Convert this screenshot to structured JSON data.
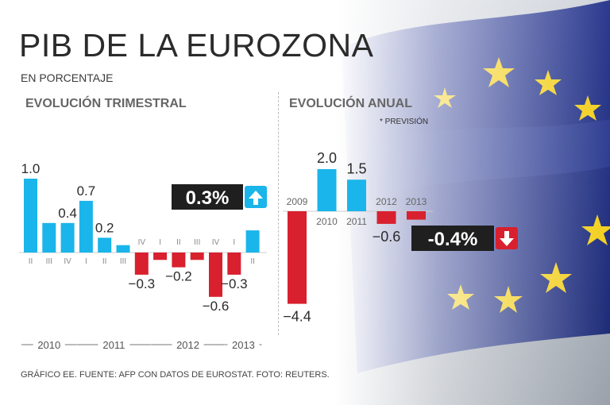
{
  "title": "PIB DE LA EUROZONA",
  "subtitle": "EN PORCENTAJE",
  "source": "GRÁFICO EE. FUENTE: AFP CON DATOS DE EUROSTAT. FOTO: REUTERS.",
  "colors": {
    "positive": "#1ab5ea",
    "negative": "#d8202f",
    "text": "#2b2b2b",
    "badge": "#1f1f1f"
  },
  "chart_data": [
    {
      "type": "bar",
      "title": "EVOLUCIÓN TRIMESTRAL",
      "unit": "%",
      "ylim": [
        -0.6,
        1.0
      ],
      "categories": [
        "II",
        "III",
        "IV",
        "I",
        "II",
        "III",
        "IV",
        "I",
        "II",
        "III",
        "IV",
        "I",
        "II"
      ],
      "year_groups": [
        "2010",
        "2011",
        "2012",
        "2013"
      ],
      "values": [
        1.0,
        0.4,
        0.4,
        0.7,
        0.2,
        0.1,
        -0.3,
        -0.1,
        -0.2,
        -0.1,
        -0.6,
        -0.3,
        0.3
      ],
      "value_labels": [
        "1.0",
        "",
        "0.4",
        "0.7",
        "0.2",
        "",
        "−0.3",
        "",
        "−0.2",
        "",
        "−0.6",
        "−0.3",
        ""
      ],
      "latest_label": "0.3%",
      "trend": "up"
    },
    {
      "type": "bar",
      "title": "EVOLUCIÓN ANUAL",
      "note": "* PREVISIÓN",
      "unit": "%",
      "ylim": [
        -4.4,
        2.0
      ],
      "categories": [
        "2009",
        "2010",
        "2011",
        "2012",
        "2013"
      ],
      "values": [
        -4.4,
        2.0,
        1.5,
        -0.6,
        -0.4
      ],
      "value_labels": [
        "−4.4",
        "2.0",
        "1.5",
        "−0.6",
        ""
      ],
      "forecast_label": "-0.4%",
      "trend": "down"
    }
  ]
}
